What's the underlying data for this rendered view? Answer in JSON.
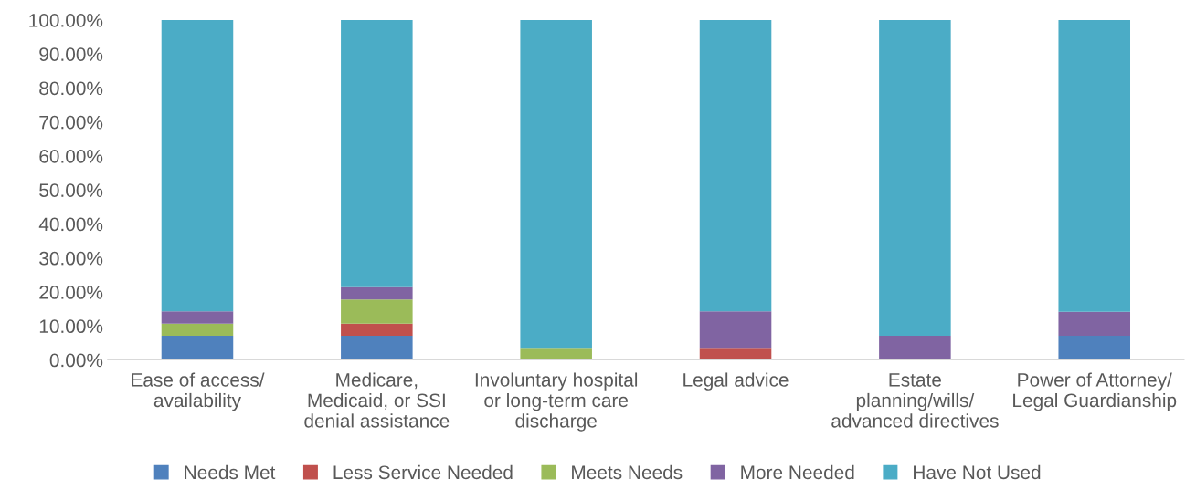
{
  "chart_data": {
    "type": "bar",
    "stacked": true,
    "categories": [
      "Ease of access/\navailability",
      "Medicare,\nMedicaid, or SSI\ndenial assistance",
      "Involuntary hospital\nor long-term care\ndischarge",
      "Legal advice",
      "Estate\nplanning/wills/\nadvanced directives",
      "Power of Attorney/\nLegal Guardianship"
    ],
    "series": [
      {
        "name": "Needs Met",
        "color": "#4f81bd",
        "values": [
          7.1,
          7.1,
          0,
          0,
          0,
          7.1
        ]
      },
      {
        "name": "Less Service Needed",
        "color": "#c0504d",
        "values": [
          0,
          3.6,
          0,
          3.6,
          0,
          0
        ]
      },
      {
        "name": "Meets Needs",
        "color": "#9bbb59",
        "values": [
          3.6,
          7.1,
          3.6,
          0,
          0,
          0
        ]
      },
      {
        "name": "More Needed",
        "color": "#8064a2",
        "values": [
          3.6,
          3.6,
          0,
          10.7,
          7.1,
          7.1
        ]
      },
      {
        "name": "Have Not Used",
        "color": "#4bacc6",
        "values": [
          85.7,
          78.6,
          96.4,
          85.7,
          92.9,
          85.8
        ]
      }
    ],
    "ylim": [
      0,
      100
    ],
    "yticks": [
      {
        "value": 0,
        "label": "0.00%"
      },
      {
        "value": 10,
        "label": "10.00%"
      },
      {
        "value": 20,
        "label": "20.00%"
      },
      {
        "value": 30,
        "label": "30.00%"
      },
      {
        "value": 40,
        "label": "40.00%"
      },
      {
        "value": 50,
        "label": "50.00%"
      },
      {
        "value": 60,
        "label": "60.00%"
      },
      {
        "value": 70,
        "label": "70.00%"
      },
      {
        "value": 80,
        "label": "80.00%"
      },
      {
        "value": 90,
        "label": "90.00%"
      },
      {
        "value": 100,
        "label": "100.00%"
      }
    ],
    "grid": false,
    "legend": "bottom"
  }
}
